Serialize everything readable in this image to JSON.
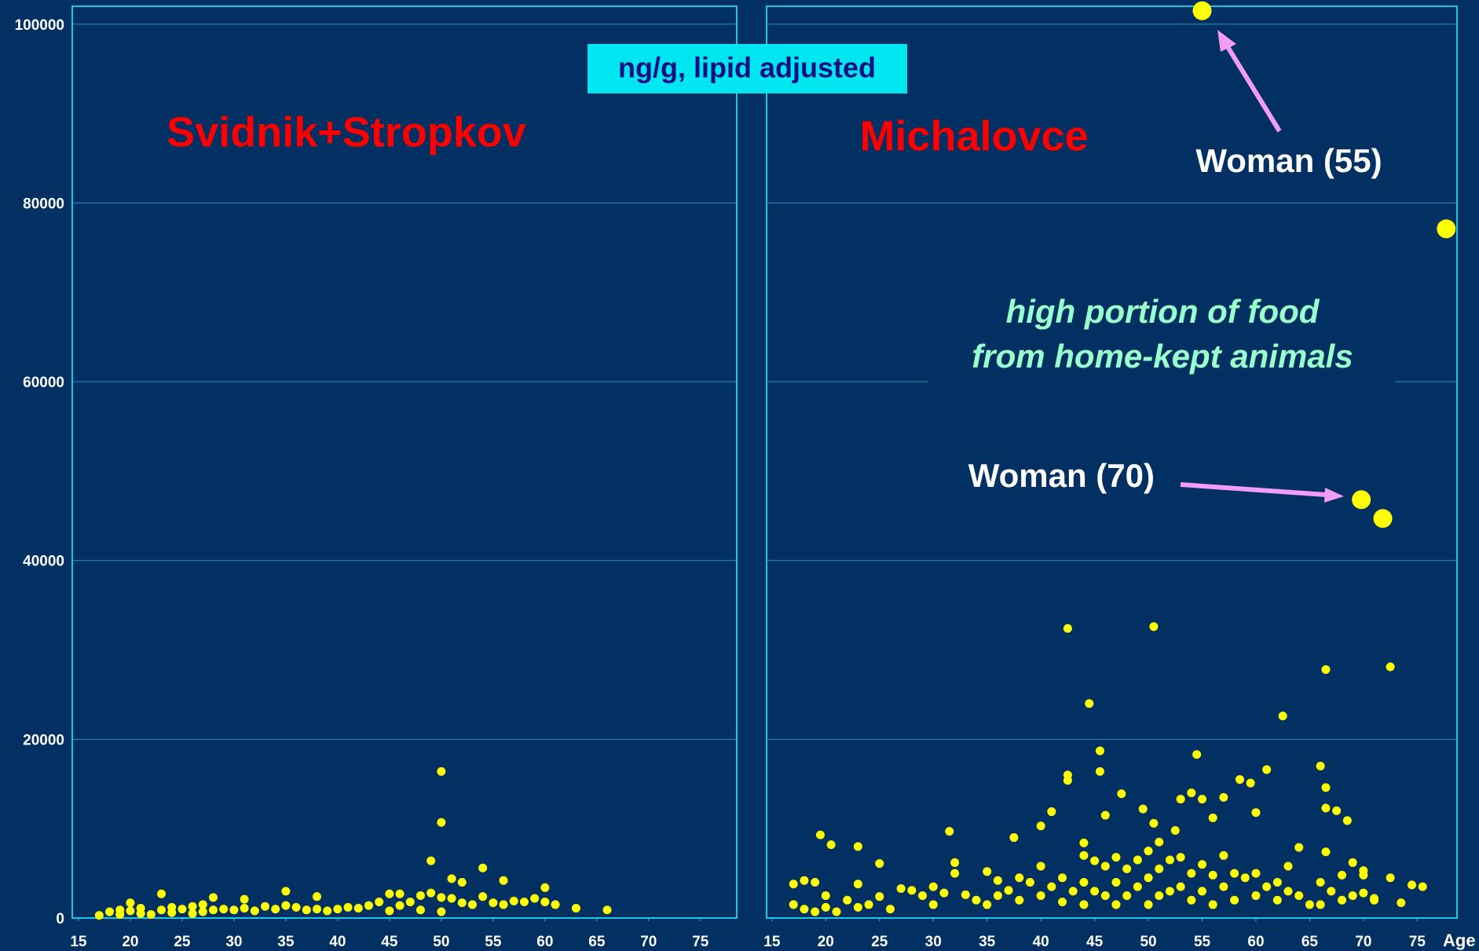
{
  "unit_label": "ng/g, lipid adjusted",
  "chart_data": [
    {
      "type": "scatter",
      "title": "Svidnik+Stropkov",
      "color": "#ffff00",
      "grid": true,
      "xlim": [
        14.4,
        78.5
      ],
      "xticks": [
        15,
        20,
        25,
        30,
        35,
        40,
        45,
        50,
        55,
        60,
        65,
        70,
        75
      ],
      "ylim": [
        0,
        102000
      ],
      "yticks": [
        0,
        20000,
        40000,
        60000,
        80000,
        100000
      ],
      "x": [
        17,
        18,
        19,
        19,
        20,
        20,
        21,
        21,
        22,
        23,
        23,
        24,
        24,
        25,
        26,
        26,
        27,
        27,
        28,
        28,
        29,
        30,
        31,
        31,
        32,
        33,
        34,
        35,
        35,
        36,
        37,
        38,
        38,
        39,
        40,
        41,
        42,
        43,
        44,
        45,
        45,
        46,
        46,
        47,
        48,
        48,
        49,
        49,
        50,
        50,
        50,
        50,
        51,
        51,
        52,
        52,
        53,
        54,
        54,
        55,
        56,
        56,
        57,
        58,
        59,
        60,
        60,
        61,
        63,
        66
      ],
      "y": [
        300,
        700,
        900,
        400,
        1700,
        800,
        1100,
        500,
        400,
        2700,
        900,
        1200,
        600,
        1000,
        1300,
        500,
        1500,
        700,
        2300,
        900,
        1000,
        900,
        2100,
        1100,
        800,
        1300,
        1000,
        3000,
        1400,
        1200,
        900,
        2400,
        1000,
        800,
        1000,
        1200,
        1100,
        1400,
        1800,
        2700,
        800,
        2700,
        1400,
        1800,
        2500,
        900,
        6400,
        2800,
        16400,
        10700,
        2300,
        700,
        4400,
        2200,
        4000,
        1700,
        1500,
        5600,
        2400,
        1700,
        4200,
        1500,
        1900,
        1800,
        2200,
        3400,
        1800,
        1500,
        1100,
        900
      ]
    },
    {
      "type": "scatter",
      "title": "Michalovce",
      "color": "#ffff00",
      "grid": true,
      "xlabel": "Age",
      "annotations": [
        "Woman (55)",
        "Woman (70)",
        "high portion of food",
        "from home-kept animals"
      ],
      "xlim": [
        14.5,
        78.7
      ],
      "xticks": [
        15,
        20,
        25,
        30,
        35,
        40,
        45,
        50,
        55,
        60,
        65,
        70,
        75
      ],
      "ylim": [
        0,
        102000
      ],
      "yticks": [
        0,
        20000,
        40000,
        60000,
        80000,
        100000
      ],
      "x": [
        55,
        77.7,
        69.8,
        71.8,
        42.5,
        50.5,
        44.5,
        66.5,
        72.5,
        62.5,
        45.5,
        54.5,
        66,
        61,
        42.5,
        42.5,
        45.5,
        58.5,
        59.5,
        66.5,
        47.5,
        53,
        54,
        55,
        57,
        40,
        37.5,
        31.5,
        19.5,
        20.5,
        23,
        25,
        41,
        44,
        46,
        49.5,
        50.5,
        52.5,
        56,
        60,
        66.5,
        67.5,
        68.5,
        64,
        66.5,
        69,
        70,
        72.5,
        74.5,
        75.5,
        73.5,
        71,
        17,
        18,
        19,
        17,
        18,
        19,
        20,
        20,
        21,
        22,
        23,
        23,
        24,
        25,
        26,
        27,
        28,
        29,
        30,
        30,
        31,
        32,
        32,
        33,
        34,
        35,
        35,
        36,
        36,
        37,
        38,
        38,
        39,
        40,
        40,
        41,
        42,
        42,
        43,
        44,
        44,
        44,
        45,
        45,
        46,
        46,
        47,
        47,
        47,
        48,
        48,
        49,
        49,
        50,
        50,
        50,
        51,
        51,
        51,
        52,
        52,
        53,
        53,
        54,
        54,
        55,
        55,
        56,
        56,
        57,
        57,
        58,
        58,
        59,
        60,
        60,
        61,
        62,
        62,
        63,
        63,
        64,
        65,
        66,
        66,
        67,
        68,
        68,
        69,
        70,
        70,
        71
      ],
      "y": [
        101500,
        77100,
        46800,
        44700,
        32400,
        32600,
        24000,
        27800,
        28100,
        22600,
        18700,
        18300,
        17000,
        16600,
        16000,
        15400,
        16400,
        15500,
        15100,
        14600,
        13900,
        13300,
        14000,
        13300,
        13500,
        10300,
        9000,
        9700,
        9300,
        8200,
        8000,
        6100,
        11900,
        8400,
        11500,
        12200,
        10600,
        9800,
        11200,
        11800,
        12300,
        12000,
        10900,
        7900,
        7400,
        6200,
        5300,
        4500,
        3700,
        3500,
        1700,
        2200,
        3800,
        4200,
        4000,
        1500,
        1000,
        700,
        2500,
        1200,
        700,
        2000,
        3800,
        1200,
        1500,
        2400,
        1000,
        3300,
        3100,
        2500,
        3500,
        1500,
        2800,
        5000,
        6200,
        2600,
        2000,
        5200,
        1500,
        4200,
        2500,
        3100,
        4500,
        2000,
        4000,
        5800,
        2500,
        3500,
        4500,
        1800,
        3000,
        7000,
        4000,
        1500,
        6400,
        3000,
        5800,
        2500,
        6800,
        4000,
        1500,
        5500,
        2500,
        6500,
        3500,
        7500,
        4500,
        1500,
        8500,
        5500,
        2500,
        6500,
        3000,
        6800,
        3500,
        5000,
        2000,
        6000,
        3000,
        4800,
        1500,
        7000,
        3500,
        5000,
        2000,
        4500,
        5000,
        2500,
        3500,
        4000,
        2000,
        5800,
        3000,
        2500,
        1500,
        4000,
        1500,
        3000,
        4800,
        2000,
        2500,
        4800,
        2800,
        2000
      ]
    }
  ]
}
